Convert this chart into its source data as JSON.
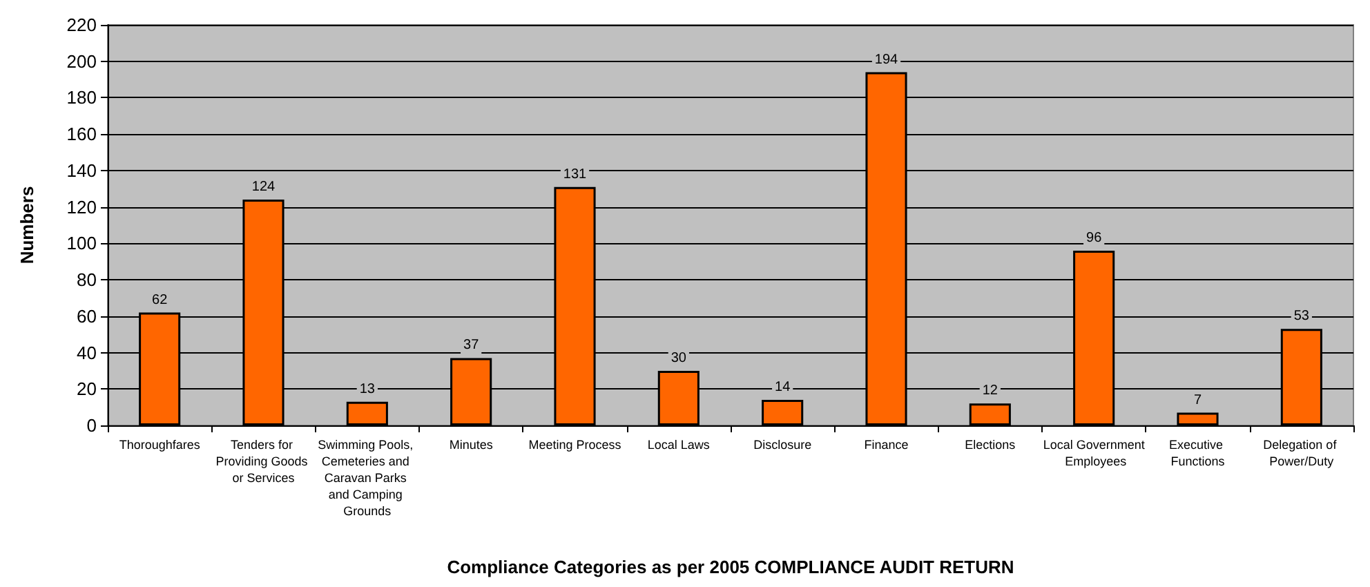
{
  "chart_data": {
    "type": "bar",
    "xlabel": "Compliance Categories as per 2005 COMPLIANCE AUDIT RETURN",
    "ylabel": "Numbers",
    "categories": [
      "Thoroughfares",
      "Tenders for Providing Goods or Services",
      "Swimming Pools, Cemeteries and Caravan Parks and Camping Grounds",
      "Minutes",
      "Meeting Process",
      "Local Laws",
      "Disclosure",
      "Finance",
      "Elections",
      "Local Government Employees",
      "Executive Functions",
      "Delegation of Power/Duty"
    ],
    "values": [
      62,
      124,
      13,
      37,
      131,
      30,
      14,
      194,
      12,
      96,
      7,
      53
    ],
    "color": "#ff6600",
    "ylim": [
      0,
      220
    ],
    "yticks": [
      0,
      20,
      40,
      60,
      80,
      100,
      120,
      140,
      160,
      180,
      200,
      220
    ],
    "grid": "y",
    "data_labels": true
  }
}
